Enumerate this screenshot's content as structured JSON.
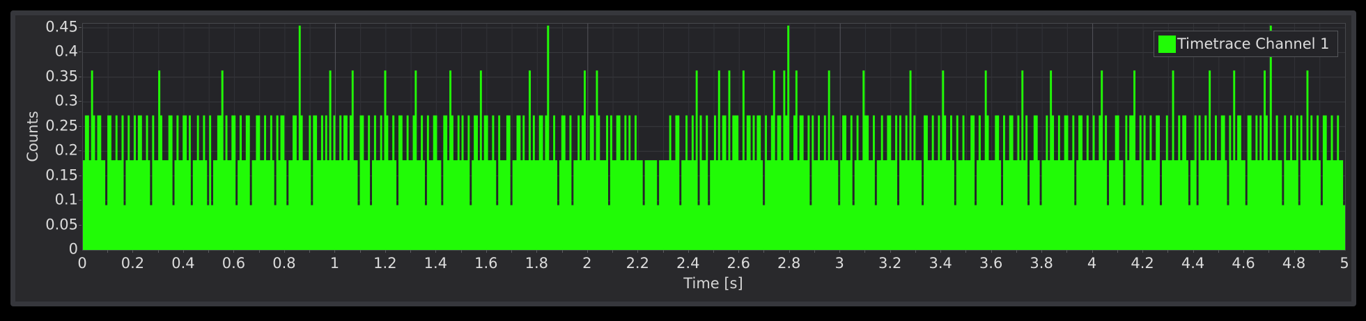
{
  "window": {
    "background": "#000000",
    "panel_background": "#29292c",
    "panel_border": "#36373c"
  },
  "legend": {
    "label": "Timetrace Channel 1"
  },
  "colors": {
    "series_green": "#21fb06",
    "plot_background": "#242428",
    "plot_frame": "#47484d",
    "grid_minor_vertical": "#323338",
    "grid_major_vertical": "#55565b",
    "grid_horizontal": "#393a3e",
    "tick_mark": "#5e5f63",
    "text": "#dcdcdc"
  },
  "chart_data": {
    "type": "line",
    "subtype": "step-area-timetrace",
    "title": "",
    "xlabel": "Time [s]",
    "ylabel": "Counts",
    "legend": [
      "Timetrace Channel 1"
    ],
    "legend_label": "Timetrace Channel 1",
    "legend_position": "top-right",
    "grid": "on",
    "xlim": [
      0,
      5
    ],
    "ylim": [
      0,
      0.4585
    ],
    "x_tick_step": 0.2,
    "x_minor_tick_step": 0.1,
    "x_major_grid_step": 1.0,
    "y_tick_step": 0.05,
    "x_tick_labels": [
      "0",
      "0.2",
      "0.4",
      "0.6",
      "0.8",
      "1",
      "1.2",
      "1.4",
      "1.6",
      "1.8",
      "2",
      "2.2",
      "2.4",
      "2.6",
      "2.8",
      "3",
      "3.2",
      "3.4",
      "3.6",
      "3.8",
      "4",
      "4.2",
      "4.4",
      "4.6",
      "4.8",
      "5"
    ],
    "y_tick_labels": [
      "0",
      "0.05",
      "0.1",
      "0.15",
      "0.2",
      "0.25",
      "0.3",
      "0.35",
      "0.4",
      "0.45"
    ],
    "quantization_unit": 0.0909090909,
    "observed_levels": [
      0.0909,
      0.1818,
      0.2727,
      0.3636,
      0.4545
    ],
    "tall_spike_times_s": [
      0.855,
      1.839,
      2.79,
      4.702
    ],
    "bin_width_s": 0.008064516,
    "bin_levels": "233243233221332232231232232332232132243222331232233231223223213122334232233123223312233223223213233212233253222313322323242322323323422133223123223243223213322322342232132233221332432232322312332423322321322233122332322423223323522321233223122323422332432223132233223232232221222222122222322331223223241322312232423324233322423323233213223423324352234233223132232232423221233223123224332231223223322313223242322213322322324322321322322233123224322233213223322324231223321223243223223322312332232232234231222332213233422313223223312232242232332122313223242232233213242332213322323243252232213223223132242322321332232232 21",
    "note_levels": "each digit d maps to counts value d/11"
  },
  "axes": {
    "x_label": "Time [s]",
    "y_label": "Counts"
  }
}
